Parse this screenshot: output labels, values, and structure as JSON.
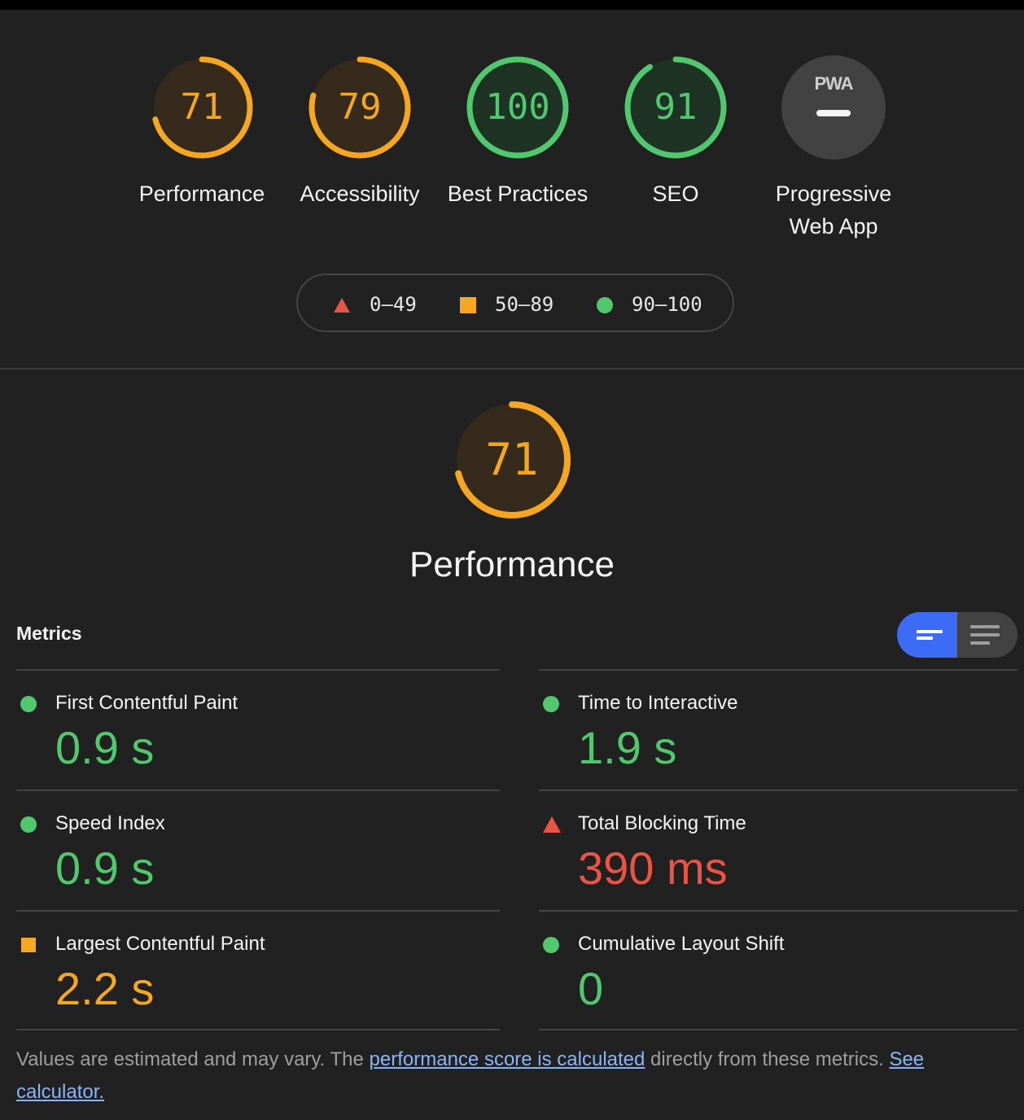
{
  "colors": {
    "orange": "#f5a623",
    "green": "#52c86e",
    "red": "#ea5444",
    "accent": "#3c6cf5"
  },
  "gauges": [
    {
      "score": "71",
      "label": "Performance",
      "status": "average",
      "fraction": 0.71
    },
    {
      "score": "79",
      "label": "Accessibility",
      "status": "average",
      "fraction": 0.79
    },
    {
      "score": "100",
      "label": "Best Practices",
      "status": "pass",
      "fraction": 1.0
    },
    {
      "score": "91",
      "label": "SEO",
      "status": "pass",
      "fraction": 0.91
    },
    {
      "score": "",
      "badge": "PWA",
      "label": "Progressive Web App",
      "status": "na"
    }
  ],
  "legend": [
    {
      "range": "0–49",
      "icon": "triangle-icon"
    },
    {
      "range": "50–89",
      "icon": "square-icon"
    },
    {
      "range": "90–100",
      "icon": "circle-icon"
    }
  ],
  "performance": {
    "score": "71",
    "fraction": 0.71,
    "title": "Performance"
  },
  "metrics_section": {
    "title": "Metrics"
  },
  "metrics": [
    {
      "name": "First Contentful Paint",
      "value": "0.9 s",
      "status": "pass"
    },
    {
      "name": "Time to Interactive",
      "value": "1.9 s",
      "status": "pass"
    },
    {
      "name": "Speed Index",
      "value": "0.9 s",
      "status": "pass"
    },
    {
      "name": "Total Blocking Time",
      "value": "390 ms",
      "status": "fail"
    },
    {
      "name": "Largest Contentful Paint",
      "value": "2.2 s",
      "status": "average"
    },
    {
      "name": "Cumulative Layout Shift",
      "value": "0",
      "status": "pass"
    }
  ],
  "footnote": {
    "text_1": "Values are estimated and may vary. The ",
    "link_1": "performance score is calculated",
    "text_2": " directly from these metrics. ",
    "link_2_line1": "See",
    "link_2_line2": "calculator."
  }
}
